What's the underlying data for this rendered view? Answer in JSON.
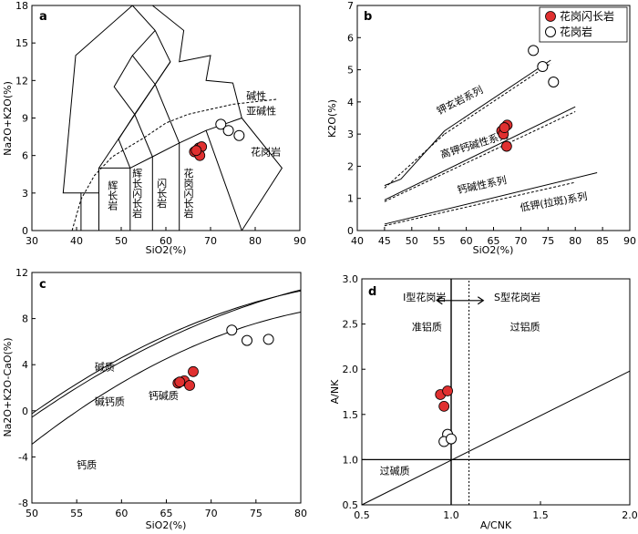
{
  "chart_data": [
    {
      "panel": "a",
      "type": "scatter",
      "xlabel": "SiO2(%)",
      "ylabel": "Na2O+K2O(%)",
      "xlim": [
        30,
        90
      ],
      "ylim": [
        0,
        18
      ],
      "xticks": [
        "30",
        "40",
        "50",
        "60",
        "70",
        "80",
        "90"
      ],
      "yticks": [
        "0",
        "3",
        "6",
        "9",
        "12",
        "15",
        "18"
      ],
      "region_labels": [
        {
          "text": "碱性",
          "x": 78,
          "y": 10.5
        },
        {
          "text": "亚碱性",
          "x": 78,
          "y": 9.3
        },
        {
          "text": "花岗岩",
          "x": 79,
          "y": 6.0
        },
        {
          "text": "辉长岩",
          "x": 48,
          "y": 2.8,
          "vertical": true
        },
        {
          "text": "辉长闪长岩",
          "x": 53.5,
          "y": 3.0,
          "vertical": true
        },
        {
          "text": "闪长岩",
          "x": 59,
          "y": 3.0,
          "vertical": true
        },
        {
          "text": "花岗闪长岩",
          "x": 65,
          "y": 3.0,
          "vertical": true
        }
      ],
      "series": [
        {
          "name": "花岗闪长岩",
          "marker": "filled",
          "color": "#e03030",
          "points": [
            [
              66.4,
              6.3
            ],
            [
              67.4,
              6.6
            ],
            [
              68.0,
              6.7
            ],
            [
              67.6,
              6.0
            ],
            [
              66.8,
              6.4
            ]
          ]
        },
        {
          "name": "花岗岩",
          "marker": "open",
          "points": [
            [
              72.3,
              8.5
            ],
            [
              74.0,
              8.0
            ],
            [
              76.4,
              7.6
            ]
          ]
        }
      ]
    },
    {
      "panel": "b",
      "type": "scatter",
      "xlabel": "SiO2(%)",
      "ylabel": "K2O(%)",
      "xlim": [
        40,
        90
      ],
      "ylim": [
        0,
        7
      ],
      "xticks": [
        "40",
        "45",
        "50",
        "55",
        "60",
        "65",
        "70",
        "75",
        "80",
        "85",
        "90"
      ],
      "yticks": [
        "0",
        "1",
        "2",
        "3",
        "4",
        "5",
        "6",
        "7"
      ],
      "region_labels": [
        {
          "text": "钾玄岩系列",
          "x": 55,
          "y": 3.6,
          "rotate": -27
        },
        {
          "text": "高钾钙碱性系列",
          "x": 55.5,
          "y": 2.25,
          "rotate": -17
        },
        {
          "text": "钙碱性系列",
          "x": 58.5,
          "y": 1.15,
          "rotate": -12
        },
        {
          "text": "低钾(拉斑)系列",
          "x": 70,
          "y": 0.6,
          "rotate": -10
        }
      ],
      "legend": {
        "position": "top-right",
        "entries": [
          "花岗闪长岩",
          "花岗岩"
        ]
      },
      "series": [
        {
          "name": "花岗闪长岩",
          "marker": "filled",
          "color": "#e03030",
          "points": [
            [
              66.5,
              3.1
            ],
            [
              67.5,
              3.28
            ],
            [
              66.8,
              3.0
            ],
            [
              67.0,
              3.2
            ],
            [
              67.4,
              2.62
            ]
          ]
        },
        {
          "name": "花岗岩",
          "marker": "open",
          "points": [
            [
              72.3,
              5.6
            ],
            [
              74.0,
              5.1
            ],
            [
              76.0,
              4.62
            ]
          ]
        }
      ]
    },
    {
      "panel": "c",
      "type": "scatter",
      "xlabel": "SiO2(%)",
      "ylabel": "Na2O+K2O-CaO(%)",
      "xlim": [
        50,
        80
      ],
      "ylim": [
        -8,
        12
      ],
      "xticks": [
        "50",
        "55",
        "60",
        "65",
        "70",
        "75",
        "80"
      ],
      "yticks": [
        "-8",
        "-4",
        "0",
        "4",
        "8",
        "12"
      ],
      "region_labels": [
        {
          "text": "碱质",
          "x": 57,
          "y": 3.5
        },
        {
          "text": "碱钙质",
          "x": 57,
          "y": 0.5
        },
        {
          "text": "钙碱质",
          "x": 63,
          "y": 1.0
        },
        {
          "text": "钙质",
          "x": 55,
          "y": -5.0
        }
      ],
      "series": [
        {
          "name": "花岗闪长岩",
          "marker": "filled",
          "color": "#e03030",
          "points": [
            [
              66.3,
              2.4
            ],
            [
              67.0,
              2.6
            ],
            [
              67.6,
              2.2
            ],
            [
              68.0,
              3.4
            ],
            [
              66.5,
              2.5
            ]
          ]
        },
        {
          "name": "花岗岩",
          "marker": "open",
          "points": [
            [
              72.3,
              7.0
            ],
            [
              74.0,
              6.1
            ],
            [
              76.4,
              6.2
            ]
          ]
        }
      ]
    },
    {
      "panel": "d",
      "type": "scatter",
      "xlabel": "A/CNK",
      "ylabel": "A/NK",
      "xlim": [
        0.5,
        2.0
      ],
      "ylim": [
        0.5,
        3.0
      ],
      "xticks": [
        "0.5",
        "1.0",
        "1.5",
        "2.0"
      ],
      "yticks": [
        "0.5",
        "1.0",
        "1.5",
        "2.0",
        "2.5",
        "3.0"
      ],
      "region_labels": [
        {
          "text": "I型花岗岩",
          "x": 0.73,
          "y": 2.76
        },
        {
          "text": "S型花岗岩",
          "x": 1.24,
          "y": 2.76
        },
        {
          "text": "准铝质",
          "x": 0.78,
          "y": 2.43
        },
        {
          "text": "过铝质",
          "x": 1.33,
          "y": 2.43
        },
        {
          "text": "过碱质",
          "x": 0.6,
          "y": 0.84
        }
      ],
      "series": [
        {
          "name": "花岗闪长岩",
          "marker": "filled",
          "color": "#e03030",
          "points": [
            [
              0.94,
              1.72
            ],
            [
              0.96,
              1.59
            ],
            [
              0.98,
              1.76
            ]
          ]
        },
        {
          "name": "花岗岩",
          "marker": "open",
          "points": [
            [
              0.98,
              1.28
            ],
            [
              0.96,
              1.2
            ],
            [
              1.0,
              1.23
            ]
          ]
        }
      ]
    }
  ]
}
